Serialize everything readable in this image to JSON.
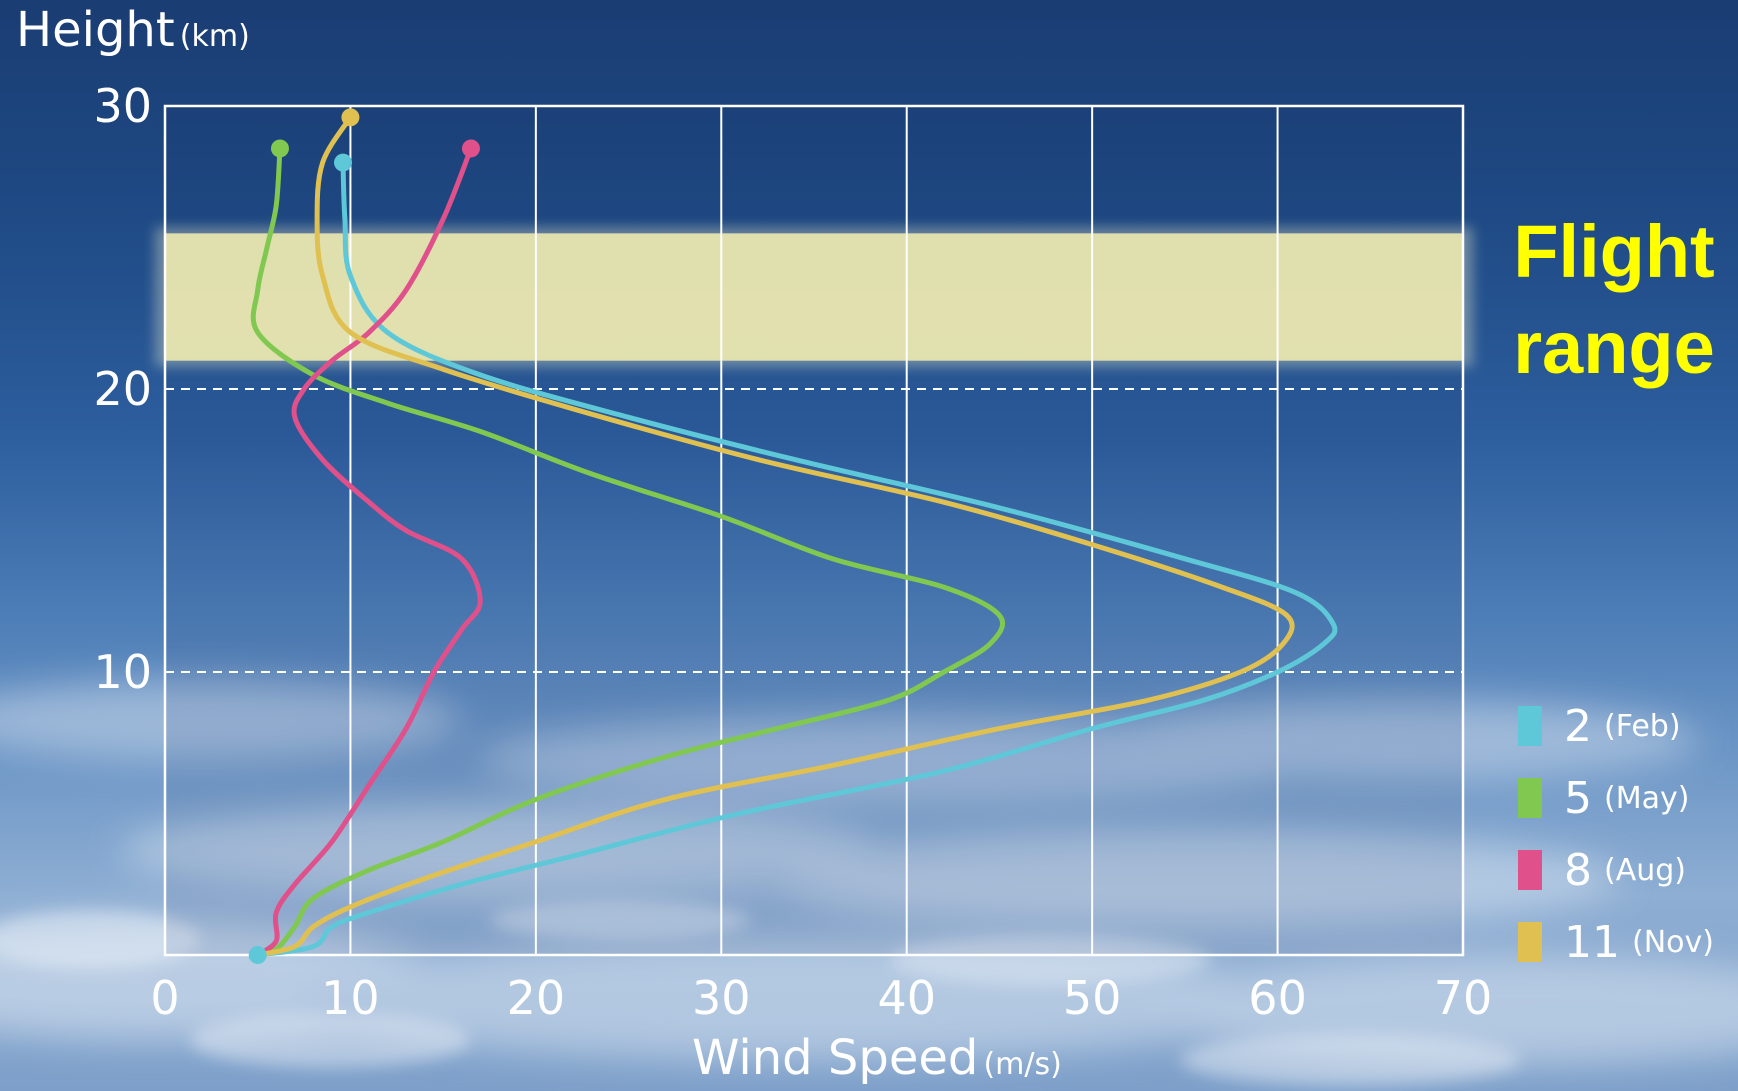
{
  "chart_data": {
    "type": "line",
    "ylabel": "Height",
    "ylabel_unit": "(km)",
    "xlabel": "Wind Speed",
    "xlabel_unit": "(m/s)",
    "xlim": [
      0,
      70
    ],
    "ylim": [
      0,
      30
    ],
    "x_ticks": [
      "0",
      "10",
      "20",
      "30",
      "40",
      "50",
      "60",
      "70"
    ],
    "y_ticks": [
      "10",
      "20",
      "30"
    ],
    "grid": "vertical lines every 10 m/s; dashed horizontal lines at 10 and 20 km",
    "annotation": {
      "text_line1": "Flight",
      "text_line2": "range",
      "band_y": [
        21,
        25.5
      ],
      "color": "#ffff00"
    },
    "legend_position": "bottom-right",
    "series": [
      {
        "name": "2",
        "month": "(Feb)",
        "color": "#5ec8d8",
        "points": [
          [
            5,
            0
          ],
          [
            8,
            0.3
          ],
          [
            9,
            1
          ],
          [
            11,
            1.5
          ],
          [
            16,
            2.5
          ],
          [
            22,
            3.5
          ],
          [
            31,
            5
          ],
          [
            42,
            6.5
          ],
          [
            50,
            8
          ],
          [
            56,
            9
          ],
          [
            60,
            10
          ],
          [
            62.5,
            11
          ],
          [
            63,
            11.7
          ],
          [
            61,
            12.8
          ],
          [
            55,
            14
          ],
          [
            45,
            15.8
          ],
          [
            34,
            17.5
          ],
          [
            25,
            19
          ],
          [
            17,
            20.5
          ],
          [
            12,
            22
          ],
          [
            10,
            24
          ],
          [
            9.7,
            26
          ],
          [
            9.6,
            28
          ]
        ]
      },
      {
        "name": "5",
        "month": "(May)",
        "color": "#80c850",
        "points": [
          [
            5,
            0
          ],
          [
            6,
            0.2
          ],
          [
            7,
            1
          ],
          [
            8,
            2
          ],
          [
            11,
            3
          ],
          [
            15,
            4
          ],
          [
            20,
            5.5
          ],
          [
            27,
            7
          ],
          [
            33,
            8
          ],
          [
            39,
            9
          ],
          [
            42,
            10
          ],
          [
            44.5,
            11
          ],
          [
            45,
            12
          ],
          [
            42,
            13
          ],
          [
            36,
            14
          ],
          [
            30,
            15.5
          ],
          [
            23,
            17
          ],
          [
            17,
            18.5
          ],
          [
            12,
            19.5
          ],
          [
            8,
            20.5
          ],
          [
            5,
            22
          ],
          [
            5,
            23.5
          ],
          [
            5.5,
            25
          ],
          [
            6,
            26.5
          ],
          [
            6.2,
            28.5
          ]
        ]
      },
      {
        "name": "8",
        "month": "(Aug)",
        "color": "#e0508a",
        "points": [
          [
            5,
            0
          ],
          [
            6,
            0.5
          ],
          [
            6,
            1.5
          ],
          [
            7,
            2.5
          ],
          [
            9,
            4
          ],
          [
            11,
            6
          ],
          [
            13,
            8
          ],
          [
            14.5,
            10
          ],
          [
            16,
            11.5
          ],
          [
            17,
            12.5
          ],
          [
            16,
            14
          ],
          [
            13,
            15
          ],
          [
            11,
            16
          ],
          [
            8.5,
            17.5
          ],
          [
            7,
            19
          ],
          [
            7.5,
            20
          ],
          [
            9,
            21
          ],
          [
            11,
            22
          ],
          [
            13,
            23.5
          ],
          [
            15,
            26
          ],
          [
            16.5,
            28.5
          ]
        ]
      },
      {
        "name": "11",
        "month": "(Nov)",
        "color": "#e0c050",
        "points": [
          [
            5,
            0
          ],
          [
            7,
            0.3
          ],
          [
            8,
            1
          ],
          [
            10,
            1.7
          ],
          [
            14,
            2.7
          ],
          [
            20,
            4
          ],
          [
            27,
            5.5
          ],
          [
            36,
            6.7
          ],
          [
            45,
            8
          ],
          [
            53,
            9
          ],
          [
            58,
            10
          ],
          [
            60.3,
            11
          ],
          [
            60.5,
            12
          ],
          [
            57,
            13
          ],
          [
            50,
            14.5
          ],
          [
            42,
            16
          ],
          [
            32,
            17.5
          ],
          [
            22,
            19.3
          ],
          [
            15,
            20.7
          ],
          [
            10,
            22
          ],
          [
            8.5,
            24
          ],
          [
            8.2,
            26
          ],
          [
            8.5,
            28
          ],
          [
            10,
            29.6
          ]
        ]
      }
    ]
  }
}
